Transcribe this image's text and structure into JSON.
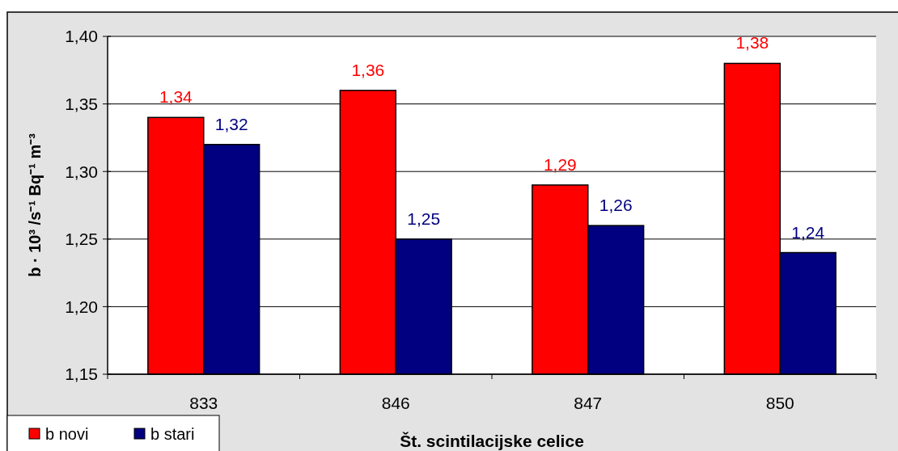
{
  "chart_data": {
    "type": "bar",
    "xlabel": "Št. scintilacijske celice",
    "ylabel": "b · 10³ /s⁻¹ Bq⁻¹ m⁻³",
    "categories": [
      "833",
      "846",
      "847",
      "850"
    ],
    "series": [
      {
        "name": "b novi",
        "color": "#ff0000",
        "values": [
          1.34,
          1.36,
          1.29,
          1.38
        ],
        "value_labels": [
          "1,34",
          "1,36",
          "1,29",
          "1,38"
        ]
      },
      {
        "name": "b stari",
        "color": "#000080",
        "values": [
          1.32,
          1.25,
          1.26,
          1.24
        ],
        "value_labels": [
          "1,32",
          "1,25",
          "1,26",
          "1,24"
        ]
      }
    ],
    "ylim": [
      1.15,
      1.4
    ],
    "yticks": [
      {
        "value": 1.15,
        "label": "1,15"
      },
      {
        "value": 1.2,
        "label": "1,20"
      },
      {
        "value": 1.25,
        "label": "1,25"
      },
      {
        "value": 1.3,
        "label": "1,30"
      },
      {
        "value": 1.35,
        "label": "1,35"
      },
      {
        "value": 1.4,
        "label": "1,40"
      }
    ],
    "grid": "y",
    "legend": "bottom left"
  }
}
